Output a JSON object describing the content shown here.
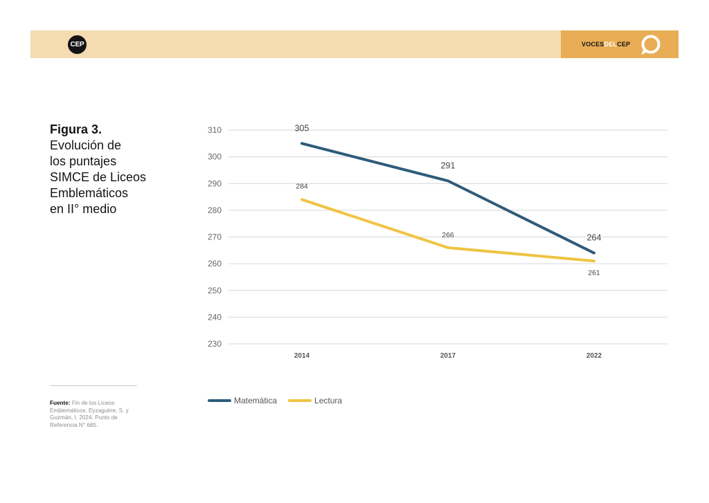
{
  "header": {
    "logo_text": "CEP",
    "brand_left": "VOCES",
    "brand_mid": "DEL",
    "brand_right": "CEP",
    "bubble_icon": "speech-bubble-icon"
  },
  "figure": {
    "number": "Figura 3.",
    "title": "Evolución de\nlos puntajes\nSIMCE de Liceos\nEmblemáticos\nen II° medio"
  },
  "source": {
    "label": "Fuente:",
    "text": " Fin de los Liceos Emblemáticos. Eyzaguirre, S. y Guzmán, I. 2024. Punto de Referencia N° 685."
  },
  "colors": {
    "band": "#f4dcb0",
    "band_accent": "#e8ad55",
    "matematica": "#2e5c7a",
    "lectura": "#efc443"
  },
  "chart_data": {
    "type": "line",
    "categories": [
      "2014",
      "2017",
      "2022"
    ],
    "series": [
      {
        "name": "Matemática",
        "values": [
          305,
          291,
          264
        ],
        "labels": [
          "305",
          "291",
          "264"
        ],
        "color": "#2e5c7a"
      },
      {
        "name": "Lectura",
        "values": [
          284,
          266,
          261
        ],
        "labels": [
          "284",
          "266",
          "261"
        ],
        "color": "#efc443"
      }
    ],
    "ylim": [
      230,
      310
    ],
    "yticks": [
      "230",
      "240",
      "250",
      "260",
      "270",
      "280",
      "290",
      "300",
      "310"
    ],
    "grid": true,
    "legend": "bottom-left",
    "title": "",
    "xlabel": "",
    "ylabel": ""
  }
}
